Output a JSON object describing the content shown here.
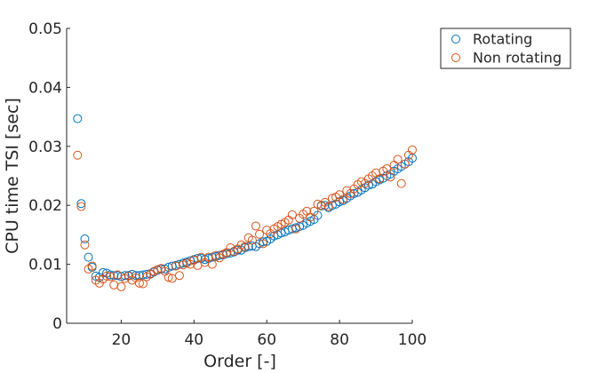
{
  "chart_data": {
    "type": "scatter",
    "xlabel": "Order [-]",
    "ylabel": "CPU time TSI [sec]",
    "xlim": [
      5,
      100
    ],
    "ylim": [
      0,
      0.05
    ],
    "xticks": [
      "20",
      "40",
      "60",
      "80",
      "100"
    ],
    "yticks": [
      "0",
      "0.01",
      "0.02",
      "0.03",
      "0.04",
      "0.05"
    ],
    "grid": false,
    "legend_position": "outside-top-right",
    "series": [
      {
        "name": "Rotating",
        "color": "#0072BD",
        "x": [
          8,
          9,
          10,
          11,
          12,
          13,
          14,
          15,
          16,
          17,
          18,
          19,
          20,
          21,
          22,
          23,
          24,
          25,
          26,
          27,
          28,
          29,
          30,
          31,
          32,
          33,
          34,
          35,
          36,
          37,
          38,
          39,
          40,
          41,
          42,
          43,
          44,
          45,
          46,
          47,
          48,
          49,
          50,
          51,
          52,
          53,
          54,
          55,
          56,
          57,
          58,
          59,
          60,
          61,
          62,
          63,
          64,
          65,
          66,
          67,
          68,
          69,
          70,
          71,
          72,
          73,
          74,
          75,
          76,
          77,
          78,
          79,
          80,
          81,
          82,
          83,
          84,
          85,
          86,
          87,
          88,
          89,
          90,
          91,
          92,
          93,
          94,
          95,
          96,
          97,
          98,
          99,
          100
        ],
        "y": [
          0.0347,
          0.0203,
          0.0143,
          0.0112,
          0.0095,
          0.008,
          0.0078,
          0.0086,
          0.0085,
          0.0082,
          0.0081,
          0.0081,
          0.0079,
          0.0081,
          0.0081,
          0.0083,
          0.0081,
          0.0081,
          0.0082,
          0.0083,
          0.0084,
          0.0087,
          0.009,
          0.0092,
          0.0092,
          0.0095,
          0.0097,
          0.0098,
          0.01,
          0.0102,
          0.0104,
          0.0106,
          0.0108,
          0.011,
          0.011,
          0.0108,
          0.011,
          0.0112,
          0.0113,
          0.0115,
          0.0116,
          0.0118,
          0.0119,
          0.0121,
          0.0124,
          0.0124,
          0.0128,
          0.013,
          0.0131,
          0.013,
          0.0135,
          0.0138,
          0.0139,
          0.0143,
          0.0148,
          0.015,
          0.0153,
          0.0155,
          0.0158,
          0.016,
          0.0162,
          0.0164,
          0.0166,
          0.017,
          0.0173,
          0.0176,
          0.0183,
          0.0199,
          0.02,
          0.0196,
          0.02,
          0.0202,
          0.0206,
          0.0208,
          0.0212,
          0.0216,
          0.022,
          0.0222,
          0.0226,
          0.023,
          0.0234,
          0.0236,
          0.024,
          0.0243,
          0.0246,
          0.025,
          0.0253,
          0.0258,
          0.0262,
          0.0266,
          0.027,
          0.0274,
          0.028
        ]
      },
      {
        "name": "Non rotating",
        "color": "#D95319",
        "x": [
          8,
          9,
          10,
          11,
          12,
          13,
          14,
          15,
          16,
          17,
          18,
          19,
          20,
          21,
          22,
          23,
          24,
          25,
          26,
          27,
          28,
          29,
          30,
          31,
          32,
          33,
          34,
          35,
          36,
          37,
          38,
          39,
          40,
          41,
          42,
          43,
          44,
          45,
          46,
          47,
          48,
          49,
          50,
          51,
          52,
          53,
          54,
          55,
          56,
          57,
          58,
          59,
          60,
          61,
          62,
          63,
          64,
          65,
          66,
          67,
          68,
          69,
          70,
          71,
          72,
          73,
          74,
          75,
          76,
          77,
          78,
          79,
          80,
          81,
          82,
          83,
          84,
          85,
          86,
          87,
          88,
          89,
          90,
          91,
          92,
          93,
          94,
          95,
          96,
          97,
          98,
          99,
          100
        ],
        "y": [
          0.0285,
          0.0198,
          0.0133,
          0.0092,
          0.0097,
          0.0073,
          0.0068,
          0.0075,
          0.008,
          0.0079,
          0.0065,
          0.0082,
          0.0062,
          0.0076,
          0.008,
          0.0073,
          0.0077,
          0.0068,
          0.0067,
          0.0079,
          0.0083,
          0.0088,
          0.0091,
          0.0093,
          0.0088,
          0.0078,
          0.0076,
          0.0097,
          0.0081,
          0.0099,
          0.0102,
          0.01,
          0.0107,
          0.0098,
          0.0112,
          0.0103,
          0.0112,
          0.01,
          0.0115,
          0.0111,
          0.0117,
          0.012,
          0.0128,
          0.0122,
          0.0126,
          0.0133,
          0.013,
          0.0145,
          0.0141,
          0.0165,
          0.0151,
          0.0135,
          0.0158,
          0.0152,
          0.016,
          0.0164,
          0.0168,
          0.0171,
          0.0175,
          0.0184,
          0.016,
          0.0178,
          0.0185,
          0.019,
          0.018,
          0.019,
          0.0202,
          0.02,
          0.0205,
          0.0198,
          0.0212,
          0.0214,
          0.0218,
          0.021,
          0.0225,
          0.022,
          0.0228,
          0.0235,
          0.024,
          0.0237,
          0.0245,
          0.025,
          0.0255,
          0.0245,
          0.0258,
          0.0262,
          0.0248,
          0.0268,
          0.0278,
          0.0237,
          0.027,
          0.0285,
          0.0294
        ]
      }
    ]
  }
}
